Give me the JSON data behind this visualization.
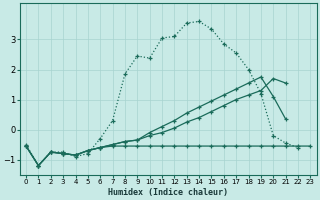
{
  "xlabel": "Humidex (Indice chaleur)",
  "bg_color": "#c8eae6",
  "grid_color": "#a8d4d0",
  "line_color": "#1a6b5a",
  "xlim": [
    -0.5,
    23.5
  ],
  "ylim": [
    -1.5,
    4.2
  ],
  "xticks": [
    0,
    1,
    2,
    3,
    4,
    5,
    6,
    7,
    8,
    9,
    10,
    11,
    12,
    13,
    14,
    15,
    16,
    17,
    18,
    19,
    20,
    21,
    22,
    23
  ],
  "yticks": [
    -1,
    0,
    1,
    2,
    3
  ],
  "line1_x": [
    0,
    1,
    2,
    3,
    4,
    5,
    6,
    7,
    8,
    9,
    10,
    11,
    12,
    13,
    14,
    15,
    16,
    17,
    18,
    19,
    20,
    21,
    22,
    23
  ],
  "line1_y": [
    -0.5,
    -1.2,
    -0.75,
    -0.75,
    -0.9,
    -0.8,
    -0.3,
    0.3,
    1.85,
    2.45,
    2.38,
    3.05,
    3.1,
    3.55,
    3.6,
    3.35,
    2.85,
    2.55,
    2.0,
    1.2,
    -0.2,
    -0.45,
    -0.6,
    null
  ],
  "line2_x": [
    0,
    1,
    2,
    3,
    4,
    5,
    6,
    7,
    8,
    9,
    10,
    11,
    12,
    13,
    14,
    15,
    16,
    17,
    18,
    19,
    20,
    21,
    22,
    23
  ],
  "line2_y": [
    -0.55,
    -1.2,
    -0.75,
    -0.8,
    -0.85,
    -0.7,
    -0.6,
    -0.5,
    -0.4,
    -0.35,
    -0.2,
    -0.1,
    0.05,
    0.25,
    0.4,
    0.6,
    0.8,
    1.0,
    1.15,
    1.3,
    1.7,
    1.55,
    null,
    null
  ],
  "line3_x": [
    0,
    1,
    2,
    3,
    4,
    5,
    6,
    7,
    8,
    9,
    10,
    11,
    12,
    13,
    14,
    15,
    16,
    17,
    18,
    19,
    20,
    21,
    22,
    23
  ],
  "line3_y": [
    -0.55,
    -1.2,
    -0.75,
    -0.8,
    -0.85,
    -0.7,
    -0.6,
    -0.5,
    -0.4,
    -0.35,
    -0.1,
    0.1,
    0.3,
    0.55,
    0.75,
    0.95,
    1.15,
    1.35,
    1.55,
    1.75,
    1.1,
    0.35,
    null,
    null
  ],
  "line4_x": [
    0,
    1,
    2,
    3,
    4,
    5,
    6,
    7,
    8,
    9,
    10,
    11,
    12,
    13,
    14,
    15,
    16,
    17,
    18,
    19,
    20,
    21,
    22,
    23
  ],
  "line4_y": [
    -0.55,
    -1.2,
    -0.75,
    -0.8,
    -0.85,
    -0.7,
    -0.6,
    -0.55,
    -0.55,
    -0.55,
    -0.55,
    -0.55,
    -0.55,
    -0.55,
    -0.55,
    -0.55,
    -0.55,
    -0.55,
    -0.55,
    -0.55,
    -0.55,
    -0.55,
    -0.55,
    -0.55
  ]
}
